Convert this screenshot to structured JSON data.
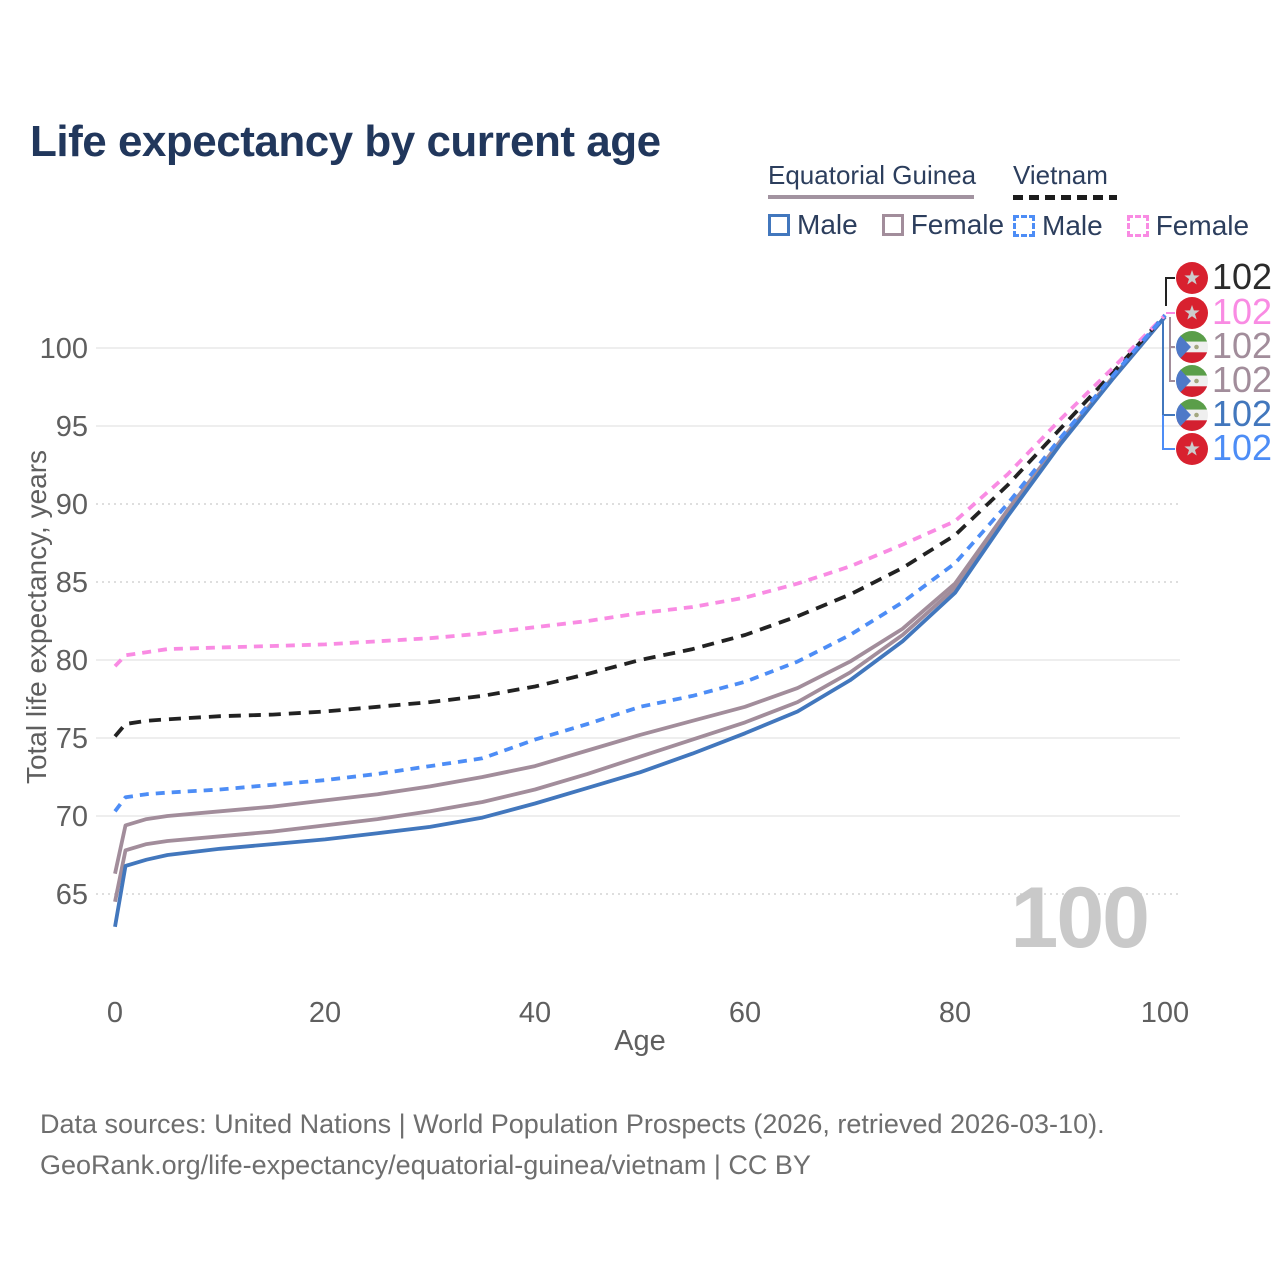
{
  "title": "Life expectancy by current age",
  "legend": {
    "groups": [
      {
        "country": "Equatorial Guinea",
        "line_style": "solid",
        "underline_color": "#a293a0",
        "items": [
          {
            "label": "Male",
            "color": "#4277bd"
          },
          {
            "label": "Female",
            "color": "#a28d9b"
          }
        ]
      },
      {
        "country": "Vietnam",
        "line_style": "dashed",
        "underline_color": "#1c1c1c",
        "items": [
          {
            "label": "Male",
            "color": "#4d8df6"
          },
          {
            "label": "Female",
            "color": "#f98be3"
          }
        ]
      }
    ]
  },
  "chart_data": {
    "type": "line",
    "title": "Life expectancy by current age",
    "xlabel": "Age",
    "ylabel": "Total life expectancy, years",
    "x_ticks": [
      0,
      20,
      40,
      60,
      80,
      100
    ],
    "y_ticks": [
      65,
      70,
      75,
      80,
      85,
      90,
      95,
      100
    ],
    "dotted_gridlines": [
      65,
      85,
      90
    ],
    "xlim": [
      0,
      100
    ],
    "ylim": [
      62,
      103
    ],
    "legend_position": "top-right",
    "ages": [
      0,
      1,
      3,
      5,
      10,
      15,
      20,
      25,
      30,
      35,
      40,
      45,
      50,
      55,
      60,
      65,
      70,
      75,
      80,
      85,
      90,
      95,
      100
    ],
    "series": [
      {
        "name": "Vietnam — Both sexes",
        "country": "Vietnam",
        "sex": "both sexes",
        "flag": "vn",
        "color": "#222222",
        "dashed": true,
        "dash": "12 8",
        "end_label": "102",
        "values": [
          75.1,
          75.9,
          76.1,
          76.2,
          76.4,
          76.5,
          76.7,
          77.0,
          77.3,
          77.7,
          78.3,
          79.1,
          80.0,
          80.7,
          81.6,
          82.8,
          84.2,
          85.9,
          88.0,
          91.2,
          94.8,
          98.4,
          102.1
        ]
      },
      {
        "name": "Vietnam — Female",
        "country": "Vietnam",
        "sex": "female",
        "flag": "vn",
        "color": "#f98be3",
        "dashed": true,
        "dash": "9 7",
        "end_label": "102",
        "values": [
          79.6,
          80.3,
          80.5,
          80.7,
          80.8,
          80.9,
          81.0,
          81.2,
          81.4,
          81.7,
          82.1,
          82.5,
          83.0,
          83.4,
          84.0,
          84.9,
          86.0,
          87.4,
          88.9,
          91.9,
          95.4,
          98.7,
          102.1
        ]
      },
      {
        "name": "Equatorial Guinea — Female",
        "country": "Equatorial Guinea",
        "sex": "female",
        "flag": "gq",
        "color": "#a28d9b",
        "dashed": false,
        "dash": "",
        "end_label": "102",
        "values": [
          66.3,
          69.4,
          69.8,
          70.0,
          70.3,
          70.6,
          71.0,
          71.4,
          71.9,
          72.5,
          73.2,
          74.2,
          75.2,
          76.1,
          77.0,
          78.2,
          79.9,
          82.0,
          84.9,
          89.6,
          94.0,
          98.1,
          102.0
        ]
      },
      {
        "name": "Equatorial Guinea — Both sexes",
        "country": "Equatorial Guinea",
        "sex": "both sexes",
        "flag": "gq",
        "color": "#a28d9b",
        "dashed": false,
        "dash": "",
        "end_label": "102",
        "values": [
          64.5,
          67.8,
          68.2,
          68.4,
          68.7,
          69.0,
          69.4,
          69.8,
          70.3,
          70.9,
          71.7,
          72.7,
          73.8,
          74.9,
          76.0,
          77.3,
          79.2,
          81.6,
          84.6,
          89.4,
          93.9,
          98.0,
          102.0
        ]
      },
      {
        "name": "Equatorial Guinea — Male",
        "country": "Equatorial Guinea",
        "sex": "male",
        "flag": "gq",
        "color": "#4277bd",
        "dashed": false,
        "dash": "",
        "end_label": "102",
        "values": [
          62.9,
          66.8,
          67.2,
          67.5,
          67.9,
          68.2,
          68.5,
          68.9,
          69.3,
          69.9,
          70.8,
          71.8,
          72.8,
          74.0,
          75.3,
          76.7,
          78.7,
          81.2,
          84.3,
          89.2,
          93.8,
          98.0,
          102.0
        ]
      },
      {
        "name": "Vietnam — Male",
        "country": "Vietnam",
        "sex": "male",
        "flag": "vn",
        "color": "#4d8df6",
        "dashed": true,
        "dash": "9 7",
        "end_label": "102",
        "values": [
          70.3,
          71.2,
          71.4,
          71.5,
          71.7,
          72.0,
          72.3,
          72.7,
          73.2,
          73.7,
          74.9,
          75.9,
          77.0,
          77.7,
          78.6,
          79.9,
          81.6,
          83.7,
          86.2,
          90.0,
          94.2,
          98.2,
          102.1
        ]
      }
    ]
  },
  "watermark": "100",
  "colors": {
    "title_text": "#21375c",
    "axis_text": "#5f5f5f",
    "gridline": "#e8e8e8",
    "gridline_dotted": "#d4d4d4",
    "watermark": "#c9c9c9",
    "vietnam_flag_red": "#d8212f",
    "vietnam_flag_star": "#cccccc",
    "eq_guinea_green": "#5a9e49",
    "eq_guinea_white": "#efefef",
    "eq_guinea_red": "#d32030",
    "eq_guinea_blue": "#4e79c8",
    "footer_text": "#6e6e6e"
  },
  "footer": {
    "line1": "Data sources: United Nations | World Population Prospects (2026, retrieved 2026-03-10).",
    "line2": "GeoRank.org/life-expectancy/equatorial-guinea/vietnam | CC BY"
  }
}
